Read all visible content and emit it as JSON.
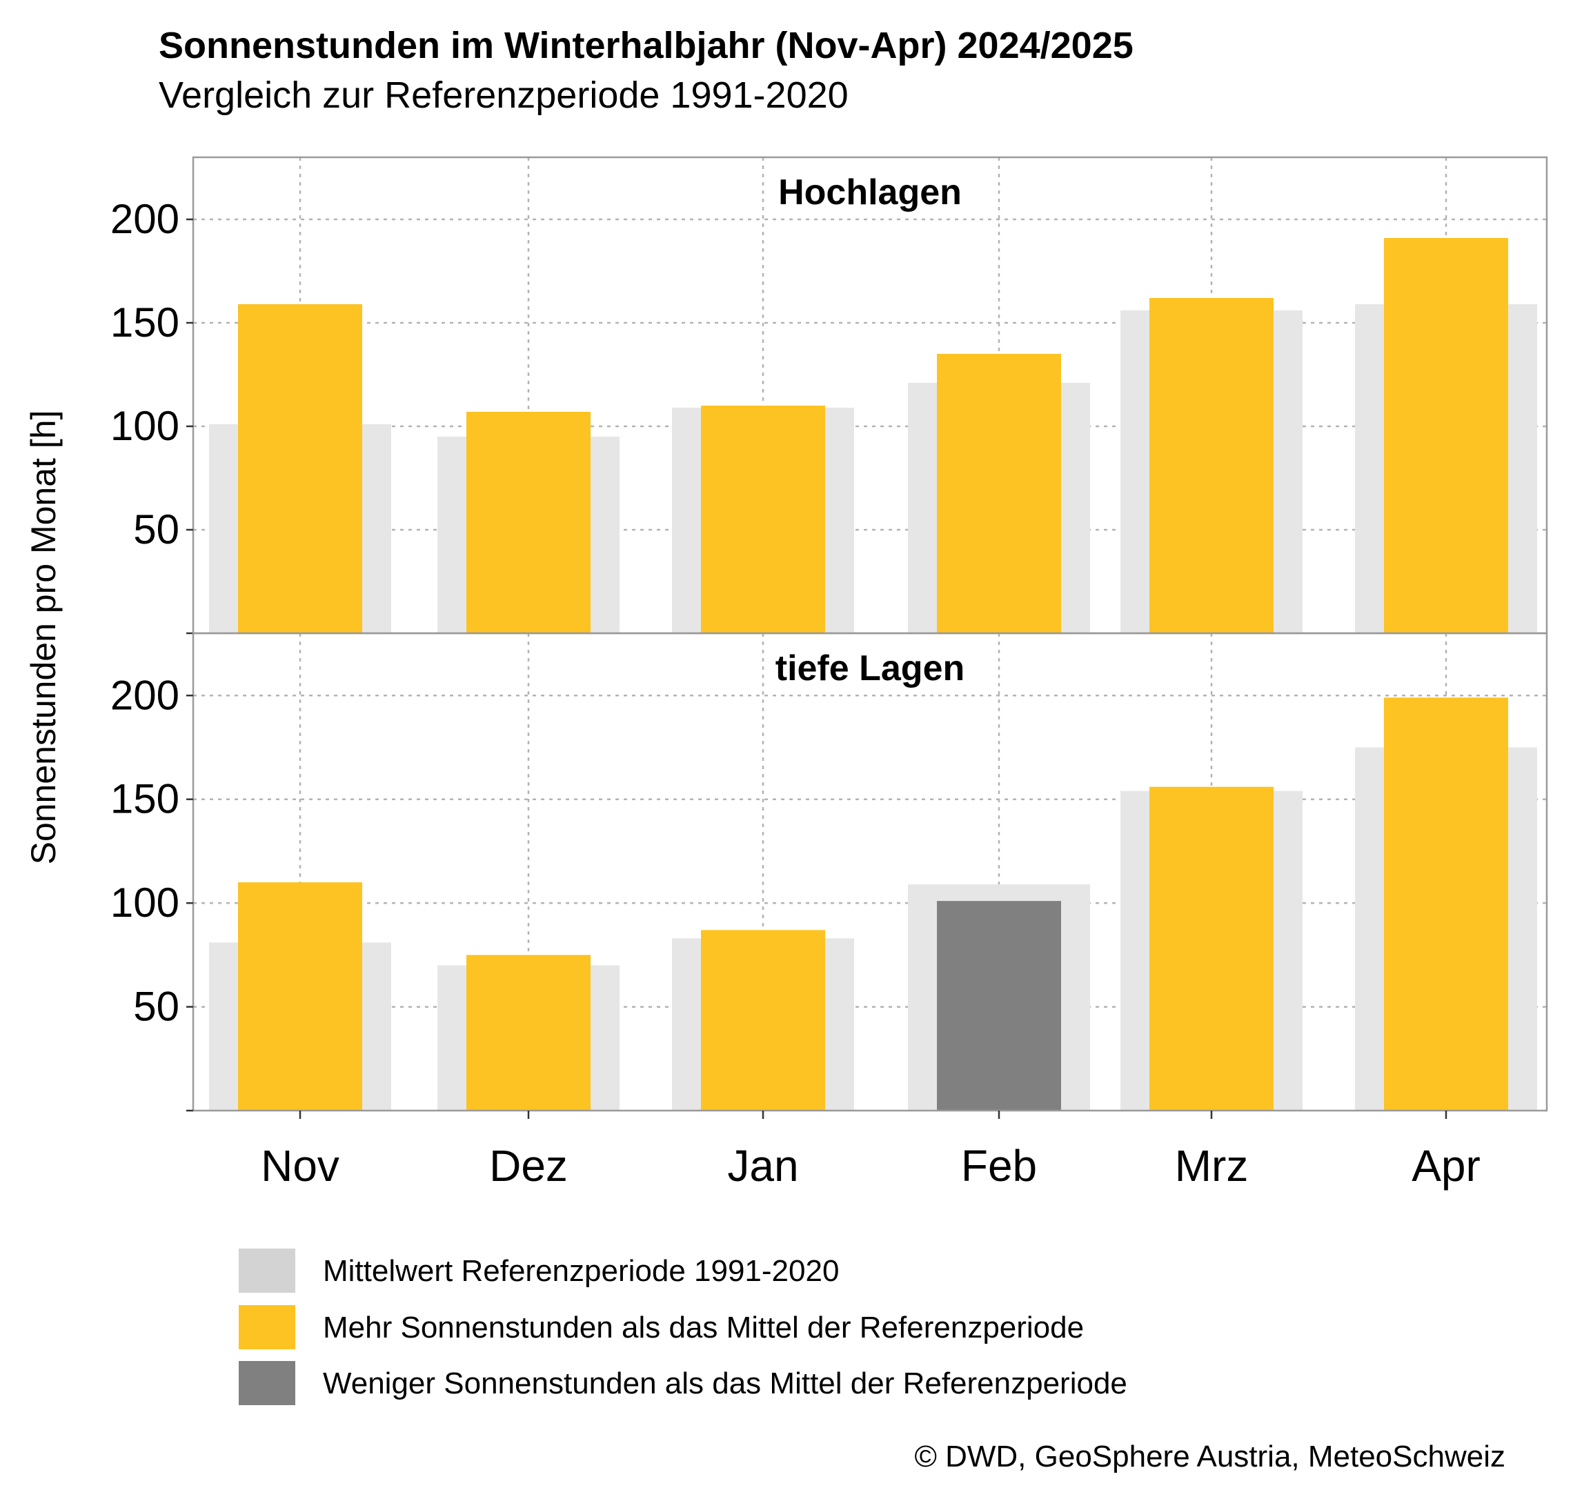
{
  "chart_data": {
    "type": "bar",
    "title": "Sonnenstunden im Winterhalbjahr (Nov-Apr) 2024/2025",
    "subtitle": "Vergleich zur Referenzperiode 1991-2020",
    "ylabel": "Sonnenstunden pro Monat [h]",
    "xlabel": "",
    "ylim": [
      0,
      230
    ],
    "yticks": [
      50,
      100,
      150,
      200
    ],
    "grid": true,
    "categories": [
      "Nov",
      "Dez",
      "Jan",
      "Feb",
      "Mrz",
      "Apr"
    ],
    "panels": [
      {
        "name": "Hochlagen",
        "reference": [
          101,
          95,
          109,
          121,
          156,
          159
        ],
        "actual": [
          159,
          107,
          110,
          135,
          162,
          191
        ]
      },
      {
        "name": "tiefe Lagen",
        "reference": [
          81,
          70,
          83,
          109,
          154,
          175
        ],
        "actual": [
          110,
          75,
          87,
          101,
          156,
          199
        ]
      }
    ],
    "legend": {
      "placement": "bottom",
      "items": [
        {
          "label": "Mittelwert Referenzperiode 1991-2020",
          "color": "#d3d3d3"
        },
        {
          "label": "Mehr Sonnenstunden als das Mittel der Referenzperiode",
          "color": "#fdc322"
        },
        {
          "label": "Weniger Sonnenstunden als das Mittel der Referenzperiode",
          "color": "#808080"
        }
      ]
    },
    "colors": {
      "reference_bar": "#e6e6e6",
      "above": "#fdc322",
      "below": "#808080",
      "grid": "#b3b3b3",
      "frame": "#9a9a9a"
    },
    "caption": "© DWD, GeoSphere Austria, MeteoSchweiz"
  }
}
